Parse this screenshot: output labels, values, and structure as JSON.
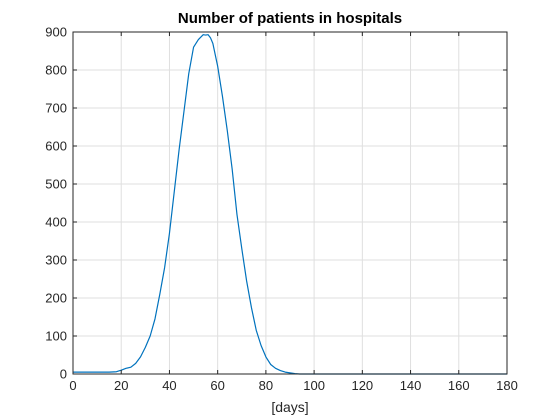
{
  "chart_data": {
    "type": "line",
    "title": "Number of patients in hospitals",
    "xlabel": "[days]",
    "ylabel": "",
    "xlim": [
      0,
      180
    ],
    "ylim": [
      0,
      900
    ],
    "xticks": [
      0,
      20,
      40,
      60,
      80,
      100,
      120,
      140,
      160,
      180
    ],
    "yticks": [
      0,
      100,
      200,
      300,
      400,
      500,
      600,
      700,
      800,
      900
    ],
    "grid": true,
    "line_color": "#0072bd",
    "series": [
      {
        "x": [
          0,
          5,
          10,
          15,
          18,
          20,
          22,
          24,
          26,
          28,
          30,
          32,
          34,
          36,
          38,
          40,
          42,
          44,
          46,
          48,
          50,
          52,
          54,
          55,
          56,
          57,
          58,
          60,
          62,
          64,
          66,
          68,
          70,
          72,
          74,
          76,
          78,
          80,
          82,
          84,
          86,
          88,
          90,
          92,
          94,
          95,
          100,
          120,
          140,
          160,
          180
        ],
        "y": [
          5,
          5,
          5,
          5,
          6,
          10,
          15,
          18,
          28,
          45,
          70,
          100,
          145,
          210,
          280,
          370,
          480,
          590,
          690,
          790,
          860,
          880,
          893,
          892,
          893,
          885,
          870,
          810,
          730,
          640,
          540,
          420,
          330,
          245,
          175,
          115,
          75,
          45,
          25,
          15,
          9,
          5,
          3,
          1,
          0,
          0,
          0,
          0,
          0,
          0,
          0
        ]
      }
    ]
  }
}
